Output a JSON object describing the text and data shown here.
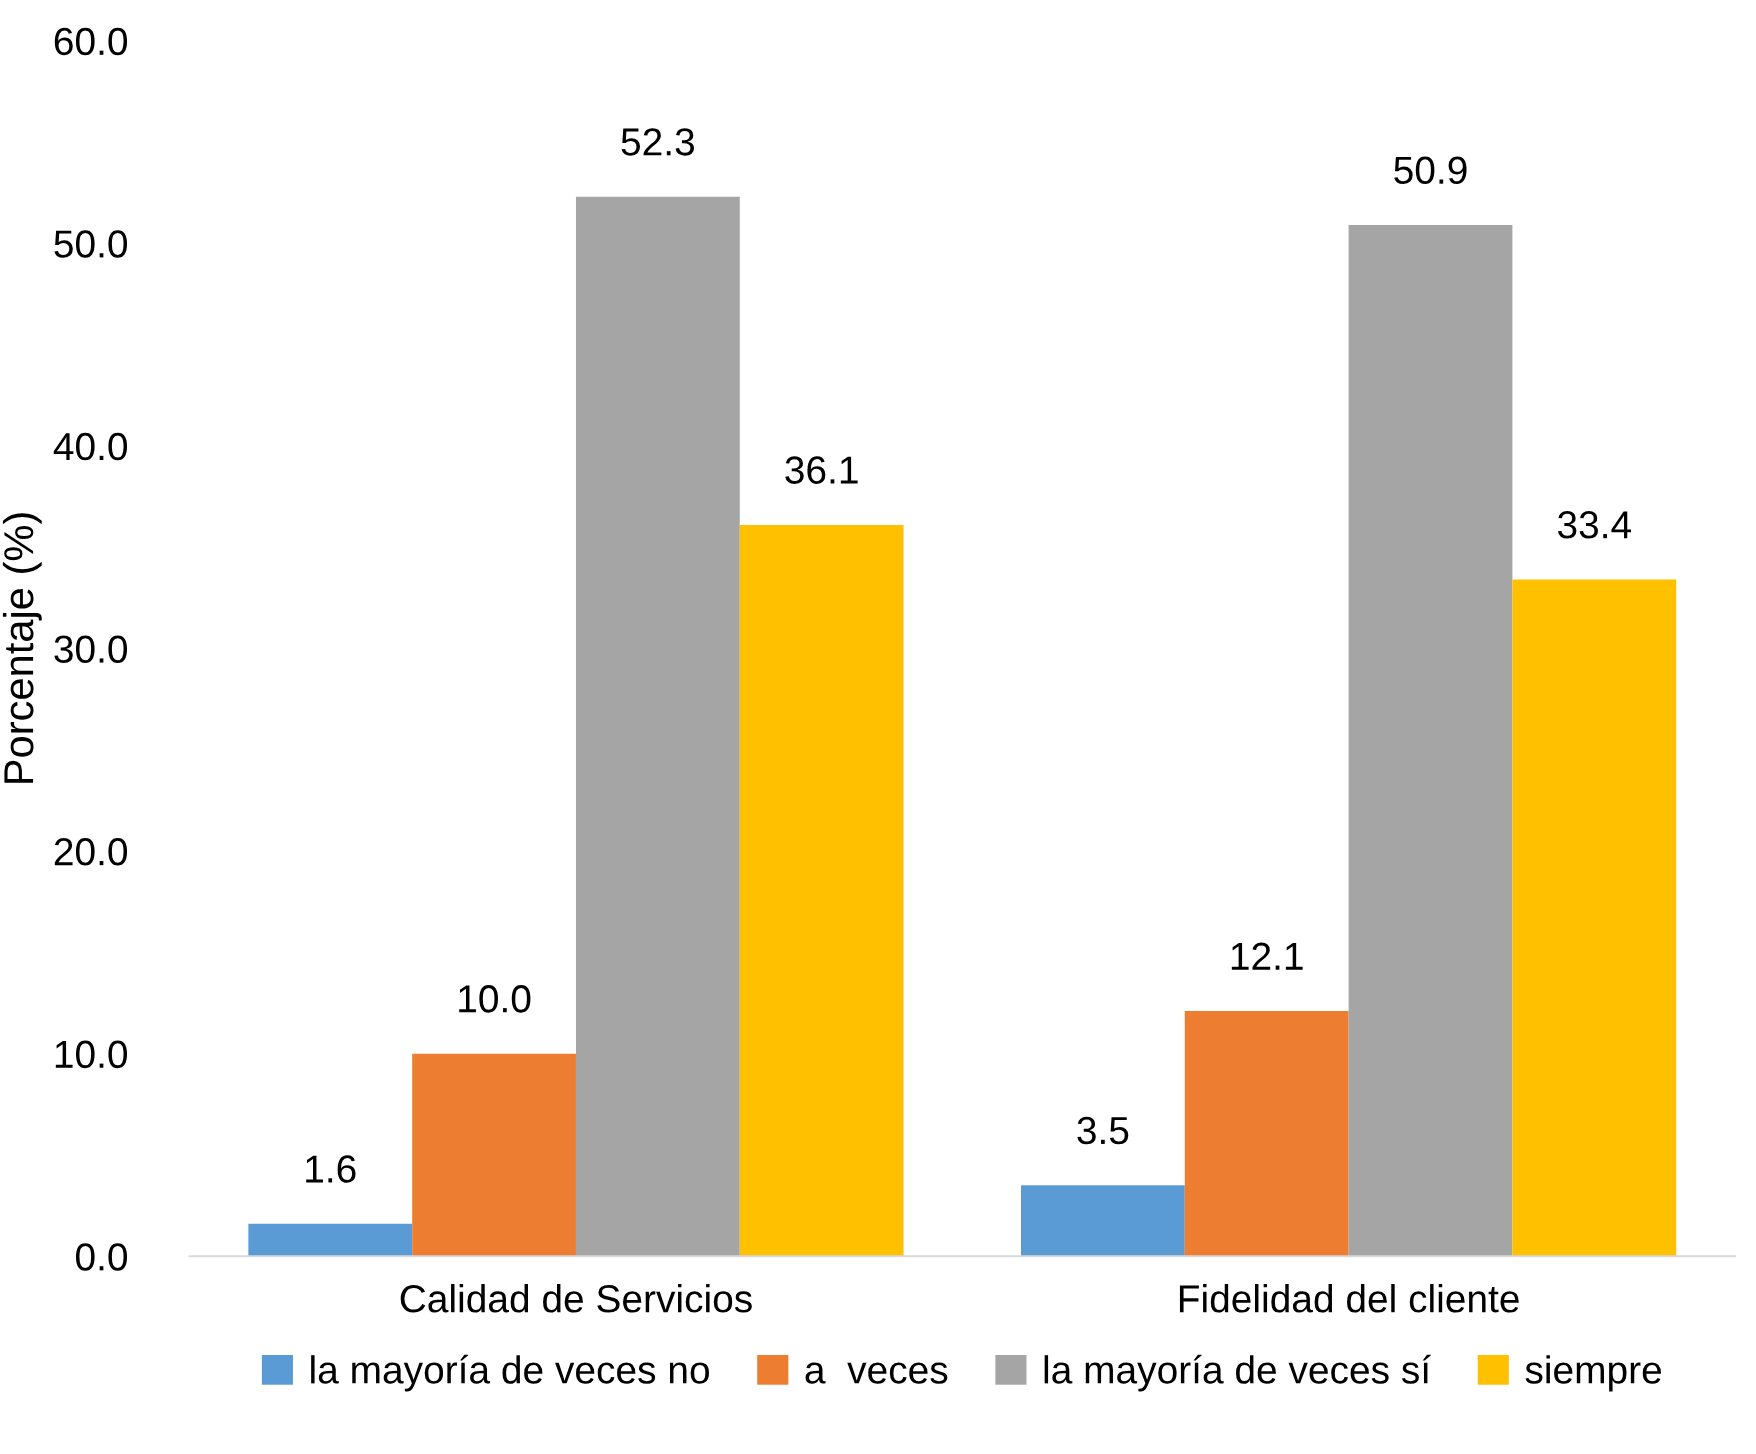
{
  "chart_data": {
    "type": "bar",
    "ylabel": "Porcentaje (%)",
    "categories": [
      "Calidad de Servicios",
      "Fidelidad del cliente"
    ],
    "series": [
      {
        "name": "la mayoría de veces no",
        "color": "#5b9bd5",
        "values": [
          1.6,
          3.5
        ],
        "value_labels": [
          "1.6",
          "3.5"
        ]
      },
      {
        "name": "a  veces",
        "color": "#ed7d31",
        "values": [
          10.0,
          12.1
        ],
        "value_labels": [
          "10.0",
          "12.1"
        ]
      },
      {
        "name": "la mayoría de veces sí",
        "color": "#a5a5a5",
        "values": [
          52.3,
          50.9
        ],
        "value_labels": [
          "52.3",
          "50.9"
        ]
      },
      {
        "name": "siempre",
        "color": "#ffc000",
        "values": [
          36.1,
          33.4
        ],
        "value_labels": [
          "36.1",
          "33.4"
        ]
      }
    ],
    "ylim": [
      0,
      60
    ],
    "yticks": [
      {
        "value": 0,
        "label": "0.0"
      },
      {
        "value": 10,
        "label": "10.0"
      },
      {
        "value": 20,
        "label": "20.0"
      },
      {
        "value": 30,
        "label": "30.0"
      },
      {
        "value": 40,
        "label": "40.0"
      },
      {
        "value": 50,
        "label": "50.0"
      },
      {
        "value": 60,
        "label": "60.0"
      }
    ],
    "grid": false,
    "legend": "bottom"
  }
}
